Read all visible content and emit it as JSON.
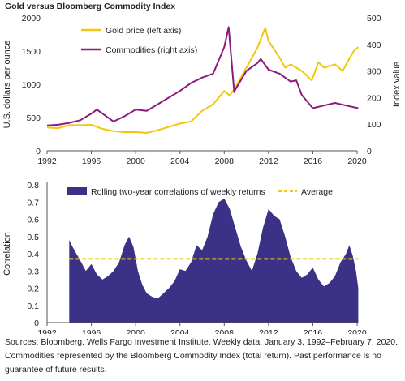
{
  "title": "Gold versus Bloomberg Commodity Index",
  "footnote": {
    "line1": "Sources: Bloomberg, Wells Fargo Investment Institute. Weekly data: January 3, 1992–February 7, 2020.",
    "line2": "Commodities represented by the Bloomberg Commodity Index (total return). Past performance is no",
    "line3": "guarantee of future results."
  },
  "colors": {
    "gold": "#f2c70f",
    "commodities": "#8c1b7c",
    "correlation": "#3b3186",
    "average": "#f2c70f",
    "axis": "#555555"
  },
  "chart_data": [
    {
      "type": "line",
      "ylabel": "U.S. dollars per ounce",
      "y2label": "Index value",
      "xlim": [
        1992,
        2020
      ],
      "ylim": [
        0,
        2000
      ],
      "y2lim": [
        0,
        500
      ],
      "xticks": [
        "1992",
        "1996",
        "2000",
        "2004",
        "2008",
        "2012",
        "2016",
        "2020"
      ],
      "yticks": [
        "0",
        "500",
        "1000",
        "1500",
        "2000"
      ],
      "y2ticks": [
        "0",
        "100",
        "200",
        "300",
        "400",
        "500"
      ],
      "legend_position": "top-center",
      "series": [
        {
          "name": "Gold price (left axis)",
          "axis": "left",
          "x": [
            1992,
            1993,
            1994,
            1995,
            1996,
            1997,
            1998,
            1999,
            2000,
            2001,
            2002,
            2003,
            2004,
            2005,
            2006,
            2007,
            2008,
            2008.5,
            2009,
            2010,
            2011,
            2011.7,
            2012,
            2013,
            2013.5,
            2014,
            2015,
            2015.9,
            2016.5,
            2017,
            2018,
            2018.7,
            2019,
            2019.7,
            2020.1
          ],
          "values": [
            350,
            340,
            385,
            385,
            390,
            330,
            295,
            280,
            280,
            270,
            310,
            360,
            410,
            440,
            600,
            700,
            900,
            830,
            950,
            1250,
            1550,
            1850,
            1650,
            1400,
            1250,
            1300,
            1200,
            1060,
            1330,
            1250,
            1300,
            1200,
            1300,
            1500,
            1560
          ]
        },
        {
          "name": "Commodities (right axis)",
          "axis": "right",
          "x": [
            1992,
            1993,
            1994,
            1995,
            1996,
            1996.5,
            1997,
            1998,
            1999,
            2000,
            2001,
            2002,
            2003,
            2004,
            2005,
            2006,
            2007,
            2008,
            2008.4,
            2008.9,
            2009,
            2010,
            2011,
            2011.3,
            2012,
            2013,
            2014,
            2014.5,
            2015,
            2016,
            2017,
            2018,
            2019,
            2020.1
          ],
          "values": [
            95,
            98,
            105,
            115,
            140,
            155,
            140,
            110,
            130,
            155,
            150,
            175,
            200,
            225,
            255,
            275,
            290,
            390,
            465,
            220,
            230,
            300,
            330,
            345,
            305,
            290,
            260,
            265,
            210,
            160,
            170,
            180,
            170,
            160
          ]
        }
      ]
    },
    {
      "type": "area",
      "ylabel": "Correlation",
      "xlim": [
        1992,
        2020
      ],
      "ylim": [
        0,
        0.8
      ],
      "xticks": [
        "1992",
        "1996",
        "2000",
        "2004",
        "2008",
        "2012",
        "2016",
        "2020"
      ],
      "yticks": [
        "0",
        "0.1",
        "0.2",
        "0.3",
        "0.4",
        "0.5",
        "0.6",
        "0.7",
        "0.8"
      ],
      "legend_position": "top",
      "series": [
        {
          "name": "Rolling two-year correlations of weekly returns",
          "x": [
            1994,
            1994.3,
            1995,
            1995.5,
            1996,
            1996.5,
            1997,
            1997.5,
            1998,
            1998.5,
            1999,
            1999.4,
            1999.8,
            2000.2,
            2000.6,
            2001,
            2001.5,
            2002,
            2002.5,
            2003,
            2003.5,
            2004,
            2004.5,
            2005,
            2005.5,
            2006,
            2006.5,
            2007,
            2007.5,
            2008,
            2008.5,
            2009,
            2009.5,
            2010,
            2010.5,
            2011,
            2011.5,
            2012,
            2012.5,
            2013,
            2013.5,
            2014,
            2014.5,
            2015,
            2015.5,
            2016,
            2016.5,
            2017,
            2017.5,
            2018,
            2018.5,
            2019,
            2019.3,
            2019.6,
            2019.9,
            2020.1
          ],
          "values": [
            0.48,
            0.44,
            0.36,
            0.3,
            0.34,
            0.28,
            0.25,
            0.27,
            0.3,
            0.35,
            0.45,
            0.5,
            0.44,
            0.3,
            0.22,
            0.17,
            0.15,
            0.14,
            0.17,
            0.2,
            0.24,
            0.31,
            0.3,
            0.35,
            0.45,
            0.42,
            0.5,
            0.63,
            0.7,
            0.72,
            0.66,
            0.55,
            0.44,
            0.36,
            0.3,
            0.4,
            0.55,
            0.66,
            0.62,
            0.6,
            0.5,
            0.38,
            0.3,
            0.26,
            0.28,
            0.32,
            0.25,
            0.21,
            0.23,
            0.27,
            0.35,
            0.4,
            0.45,
            0.39,
            0.3,
            0.2
          ]
        },
        {
          "name": "Average",
          "type": "line",
          "values": [
            0.37
          ]
        }
      ]
    }
  ]
}
